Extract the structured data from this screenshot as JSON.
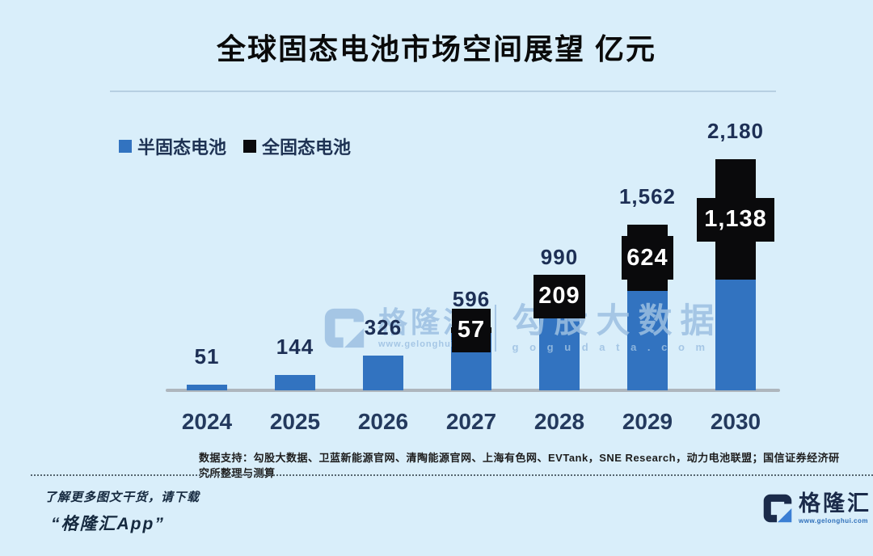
{
  "title": "全球固态电池市场空间展望 亿元",
  "legend": {
    "items": [
      {
        "label": "半固态电池",
        "color": "#3273c0"
      },
      {
        "label": "全固态电池",
        "color": "#0a0a0c"
      }
    ]
  },
  "chart_data": {
    "type": "bar",
    "stacked": true,
    "title": "全球固态电池市场空间展望 亿元",
    "units": "亿元",
    "categories": [
      "2024",
      "2025",
      "2026",
      "2027",
      "2028",
      "2029",
      "2030"
    ],
    "series": [
      {
        "name": "半固态电池",
        "color": "#3273c0",
        "values": [
          51,
          144,
          326,
          539,
          781,
          938,
          1042
        ]
      },
      {
        "name": "全固态电池",
        "color": "#0a0a0c",
        "values": [
          0,
          0,
          0,
          57,
          209,
          624,
          1138
        ]
      }
    ],
    "totals": [
      51,
      144,
      326,
      596,
      990,
      1562,
      2180
    ],
    "total_labels": [
      "51",
      "144",
      "326",
      "596",
      "990",
      "1,562",
      "2,180"
    ],
    "solid_segment_labels": [
      "",
      "",
      "",
      "57",
      "209",
      "624",
      "1,138"
    ],
    "xlabel": "",
    "ylabel": "",
    "ylim": [
      0,
      2300
    ],
    "grid": false,
    "legend_position": "top-left"
  },
  "watermark": {
    "logo_letter": "G",
    "brand": "格隆汇",
    "brand_url": "www.gelonghui.com",
    "right_text": "勾股大数据",
    "right_url": "g o g u d a t a . c o m"
  },
  "source_note": "数据支持：勾股大数据、卫蓝新能源官网、清陶能源官网、上海有色网、EVTank，SNE Research，动力电池联盟；国信证券经济研究所整理与测算",
  "footer": {
    "line1": "了解更多图文干货，请下载",
    "line2": "“格隆汇App”",
    "brand": "格隆汇",
    "brand_url": "www.gelonghui.com"
  },
  "colors": {
    "background": "#d9eefa",
    "bar_blue": "#3273c0",
    "bar_black": "#0a0a0c",
    "number_navy": "#1d2f55",
    "axis_gray": "#aeb6bd",
    "watermark_blue": "#9cc0e2"
  }
}
